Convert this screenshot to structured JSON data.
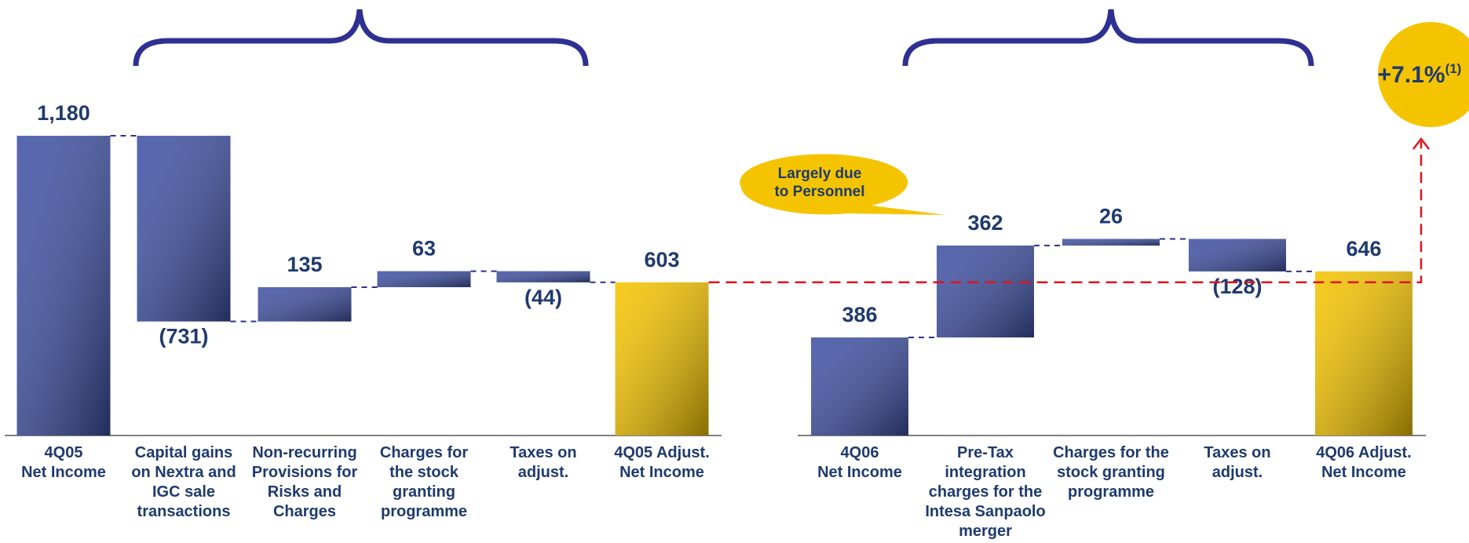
{
  "chart_data": [
    {
      "type": "waterfall",
      "categories": [
        "4Q05\nNet Income",
        "Capital gains\non Nextra and\nIGC sale\ntransactions",
        "Non-recurring\nProvisions for\nRisks and\nCharges",
        "Charges for\nthe stock\ngranting\nprogramme",
        "Taxes on\nadjust.",
        "4Q05 Adjust.\nNet Income"
      ],
      "values": [
        1180,
        -731,
        135,
        63,
        -44,
        603
      ],
      "value_labels": [
        "1,180",
        "(731)",
        "135",
        "63",
        "(44)",
        "603"
      ],
      "color": "#3f51a3",
      "total_color": "#f5c400"
    },
    {
      "type": "waterfall",
      "categories": [
        "4Q06\nNet Income",
        "Pre-Tax\nintegration\ncharges for the\nIntesa Sanpaolo\nmerger",
        "Charges for the\nstock granting\nprogramme",
        "Taxes on\nadjust.",
        "4Q06 Adjust.\nNet Income"
      ],
      "values": [
        386,
        362,
        26,
        -128,
        646
      ],
      "value_labels": [
        "386",
        "362",
        "26",
        "(128)",
        "646"
      ],
      "color": "#3f51a3",
      "total_color": "#f5c400",
      "callout": "Largely due\nto Personnel",
      "growth": "+7.1%",
      "growth_note": "(1)"
    }
  ]
}
